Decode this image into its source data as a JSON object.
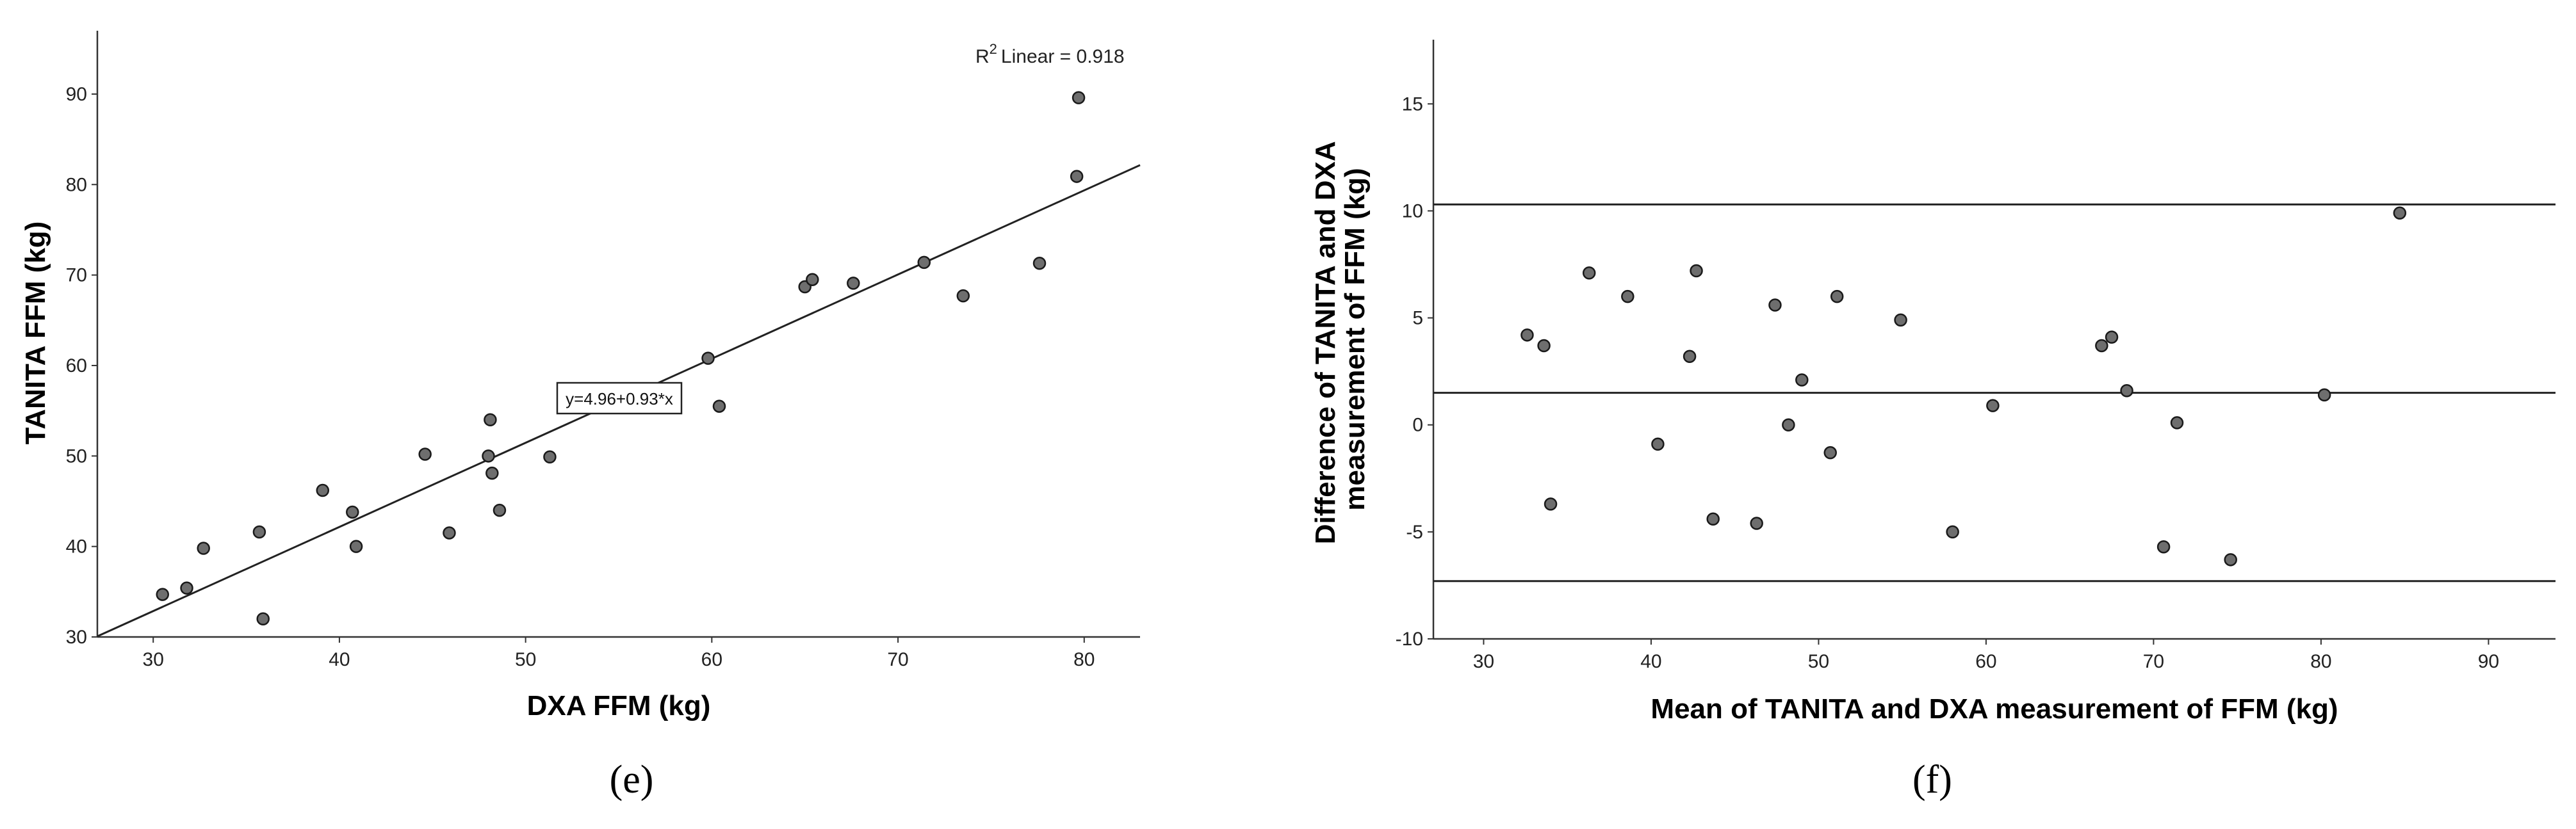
{
  "chart_data": [
    {
      "type": "scatter",
      "panel_label": "(e)",
      "xlabel": "DXA FFM (kg)",
      "ylabel": "TANITA FFM (kg)",
      "xlim": [
        27,
        83
      ],
      "ylim": [
        30,
        97
      ],
      "xticks": [
        30,
        40,
        50,
        60,
        70,
        80
      ],
      "yticks": [
        30,
        40,
        50,
        60,
        70,
        80,
        90
      ],
      "grid": false,
      "r2_label": "Linear = 0.918",
      "r2_prefix": "R",
      "r2_sup": "2",
      "fit_equation": "y=4.96+0.93*x",
      "fit": {
        "intercept": 4.96,
        "slope": 0.93
      },
      "points": [
        {
          "x": 30.5,
          "y": 34.7
        },
        {
          "x": 31.8,
          "y": 35.4
        },
        {
          "x": 32.7,
          "y": 39.8
        },
        {
          "x": 35.7,
          "y": 41.6
        },
        {
          "x": 35.9,
          "y": 32.0
        },
        {
          "x": 39.1,
          "y": 46.2
        },
        {
          "x": 40.7,
          "y": 43.8
        },
        {
          "x": 40.9,
          "y": 40.0
        },
        {
          "x": 44.6,
          "y": 50.2
        },
        {
          "x": 45.9,
          "y": 41.5
        },
        {
          "x": 48.0,
          "y": 50.0
        },
        {
          "x": 48.1,
          "y": 54.0
        },
        {
          "x": 48.2,
          "y": 48.1
        },
        {
          "x": 48.6,
          "y": 44.0
        },
        {
          "x": 51.3,
          "y": 49.9
        },
        {
          "x": 59.8,
          "y": 60.8
        },
        {
          "x": 60.4,
          "y": 55.5
        },
        {
          "x": 65.0,
          "y": 68.7
        },
        {
          "x": 65.4,
          "y": 69.5
        },
        {
          "x": 67.6,
          "y": 69.1
        },
        {
          "x": 71.4,
          "y": 71.4
        },
        {
          "x": 73.5,
          "y": 67.7
        },
        {
          "x": 77.6,
          "y": 71.3
        },
        {
          "x": 79.6,
          "y": 80.9
        },
        {
          "x": 79.7,
          "y": 89.6
        }
      ]
    },
    {
      "type": "scatter",
      "panel_label": "(f)",
      "xlabel": "Mean of TANITA and DXA measurement of FFM (kg)",
      "ylabel_lines": [
        "Difference of TANITA and DXA",
        "measurement of FFM (kg)"
      ],
      "xlim": [
        27,
        94
      ],
      "ylim": [
        -10,
        18
      ],
      "xticks": [
        30,
        40,
        50,
        60,
        70,
        80,
        90
      ],
      "yticks": [
        -10,
        -5,
        0,
        5,
        10,
        15
      ],
      "grid": false,
      "reference_lines": [
        10.3,
        1.5,
        -7.3
      ],
      "points": [
        {
          "x": 32.6,
          "y": 4.2
        },
        {
          "x": 33.6,
          "y": 3.7
        },
        {
          "x": 34.0,
          "y": -3.7
        },
        {
          "x": 36.3,
          "y": 7.1
        },
        {
          "x": 38.6,
          "y": 6.0
        },
        {
          "x": 40.4,
          "y": -0.9
        },
        {
          "x": 42.3,
          "y": 3.2
        },
        {
          "x": 42.7,
          "y": 7.2
        },
        {
          "x": 43.7,
          "y": -4.4
        },
        {
          "x": 46.3,
          "y": -4.6
        },
        {
          "x": 47.4,
          "y": 5.6
        },
        {
          "x": 48.2,
          "y": 0.0
        },
        {
          "x": 49.0,
          "y": 2.1
        },
        {
          "x": 50.7,
          "y": -1.3
        },
        {
          "x": 51.1,
          "y": 6.0
        },
        {
          "x": 54.9,
          "y": 4.9
        },
        {
          "x": 58.0,
          "y": -5.0
        },
        {
          "x": 60.4,
          "y": 0.9
        },
        {
          "x": 66.9,
          "y": 3.7
        },
        {
          "x": 67.5,
          "y": 4.1
        },
        {
          "x": 68.4,
          "y": 1.6
        },
        {
          "x": 70.6,
          "y": -5.7
        },
        {
          "x": 71.4,
          "y": 0.1
        },
        {
          "x": 74.6,
          "y": -6.3
        },
        {
          "x": 80.2,
          "y": 1.4
        },
        {
          "x": 84.7,
          "y": 9.9
        }
      ]
    }
  ]
}
